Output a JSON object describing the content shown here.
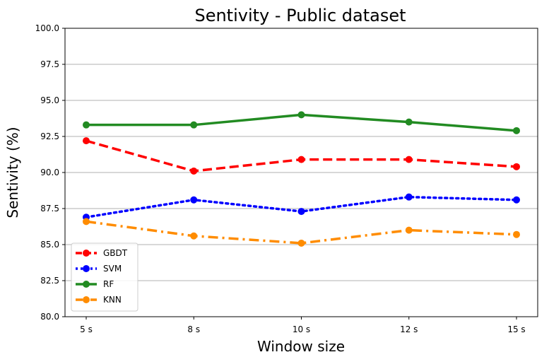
{
  "chart_data": {
    "type": "line",
    "title": "Sentivity - Public dataset",
    "xlabel": "Window size",
    "ylabel": "Sentivity (%)",
    "categories": [
      "5 s",
      "8 s",
      "10 s",
      "12 s",
      "15 s"
    ],
    "ylim": [
      80.0,
      100.0
    ],
    "yticks": [
      "80.0",
      "82.5",
      "85.0",
      "87.5",
      "90.0",
      "92.5",
      "95.0",
      "97.5",
      "100.0"
    ],
    "grid": "horizontal",
    "legend_position": "lower-left",
    "series": [
      {
        "name": "GBDT",
        "values": [
          92.2,
          90.1,
          90.9,
          90.9,
          90.4
        ],
        "color": "#ff0000",
        "style": "dashed"
      },
      {
        "name": "SVM",
        "values": [
          86.9,
          88.1,
          87.3,
          88.3,
          88.1
        ],
        "color": "#0000ff",
        "style": "dotted"
      },
      {
        "name": "RF",
        "values": [
          93.3,
          93.3,
          94.0,
          93.5,
          92.9
        ],
        "color": "#228b22",
        "style": "solid"
      },
      {
        "name": "KNN",
        "values": [
          86.6,
          85.6,
          85.1,
          86.0,
          85.7
        ],
        "color": "#ff8c00",
        "style": "dashdot"
      }
    ]
  }
}
